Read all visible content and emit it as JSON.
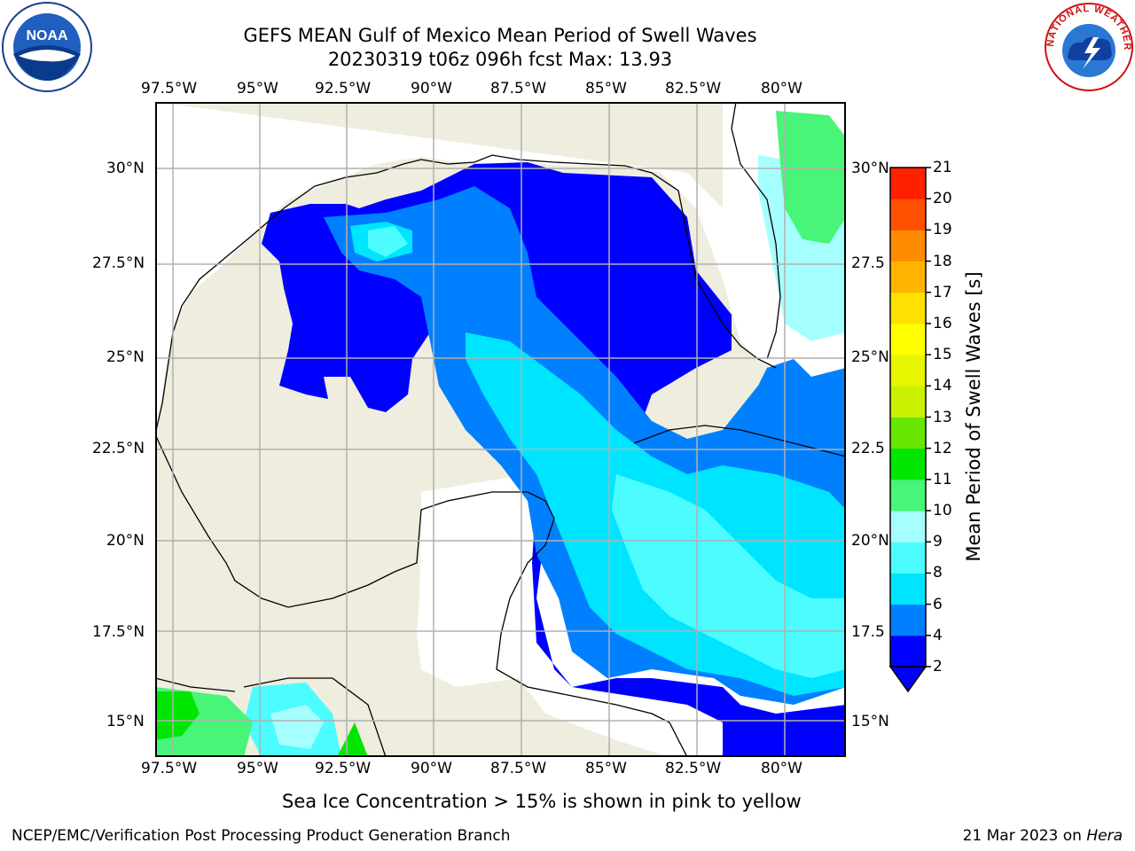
{
  "title": {
    "line1": "GEFS MEAN Gulf of Mexico Mean Period of Swell Waves",
    "line2": "20230319 t06z 096h fcst   Max: 13.93"
  },
  "logos": {
    "left": "NOAA",
    "right_ring": "NATIONAL WEATHER SERVICE"
  },
  "axes": {
    "lon_labels": [
      "97.5°W",
      "95°W",
      "92.5°W",
      "90°W",
      "87.5°W",
      "85°W",
      "82.5°W",
      "80°W"
    ],
    "lat_labels_left": [
      "30°N",
      "27.5°N",
      "25°N",
      "22.5°N",
      "20°N",
      "17.5°N",
      "15°N"
    ],
    "lat_labels_right": [
      "30°N",
      "27.5",
      "25°N",
      "22.5",
      "20°N",
      "17.5",
      "15°N"
    ]
  },
  "colorbar": {
    "label": "Mean Period of Swell Waves [s]",
    "ticks": [
      "2",
      "4",
      "6",
      "8",
      "9",
      "10",
      "11",
      "12",
      "13",
      "14",
      "15",
      "16",
      "17",
      "18",
      "19",
      "20",
      "21"
    ],
    "colors": [
      "#0000ff",
      "#0080ff",
      "#00e5ff",
      "#4dfcff",
      "#a6ffff",
      "#48f578",
      "#00e600",
      "#66e600",
      "#c8f000",
      "#e8f500",
      "#ffff00",
      "#ffe000",
      "#ffb400",
      "#ff8c00",
      "#ff5000",
      "#ff2000"
    ]
  },
  "chart_data": {
    "type": "heatmap",
    "region": "Gulf of Mexico",
    "variable": "Mean Period of Swell Waves [s]",
    "max_value": 13.93,
    "lon_range": [
      -98,
      -78.2
    ],
    "lat_range": [
      14,
      32.1
    ],
    "levels": [
      2,
      4,
      6,
      8,
      9,
      10,
      11,
      12,
      13,
      14,
      15,
      16,
      17,
      18,
      19,
      20,
      21
    ]
  },
  "note": "Sea Ice Concentration > 15% is shown in pink to yellow",
  "footer": {
    "left": "NCEP/EMC/Verification Post Processing Product Generation Branch",
    "right_date": "21 Mar 2023 on ",
    "right_host": "Hera"
  }
}
